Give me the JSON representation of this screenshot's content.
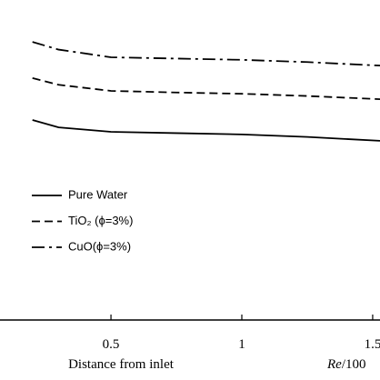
{
  "chart_data": {
    "type": "line",
    "x": [
      0.2,
      0.3,
      0.5,
      0.75,
      1.0,
      1.25,
      1.528
    ],
    "series": [
      {
        "name": "Pure Water",
        "color": "#000000",
        "dash": "solid",
        "values": [
          62.5,
          60.2,
          58.8,
          58.4,
          58.0,
          57.2,
          56.0
        ]
      },
      {
        "name": "TiO₂ (ϕ=3%)",
        "color": "#000000",
        "dash": "dashed",
        "values": [
          75.6,
          73.5,
          71.6,
          71.1,
          70.7,
          70.0,
          69.0
        ]
      },
      {
        "name": "CuO(ϕ=3%)",
        "color": "#000000",
        "dash": "dashdot",
        "values": [
          86.9,
          84.5,
          82.1,
          81.7,
          81.3,
          80.6,
          79.5
        ]
      }
    ],
    "xlim": [
      0.076,
      1.528
    ],
    "xticks": [
      0.5,
      1,
      1.5
    ],
    "ylim": [
      0,
      100
    ],
    "xlabel": "Distance from inlet",
    "annotation": {
      "italic": "Re",
      "rest": "/100"
    }
  }
}
